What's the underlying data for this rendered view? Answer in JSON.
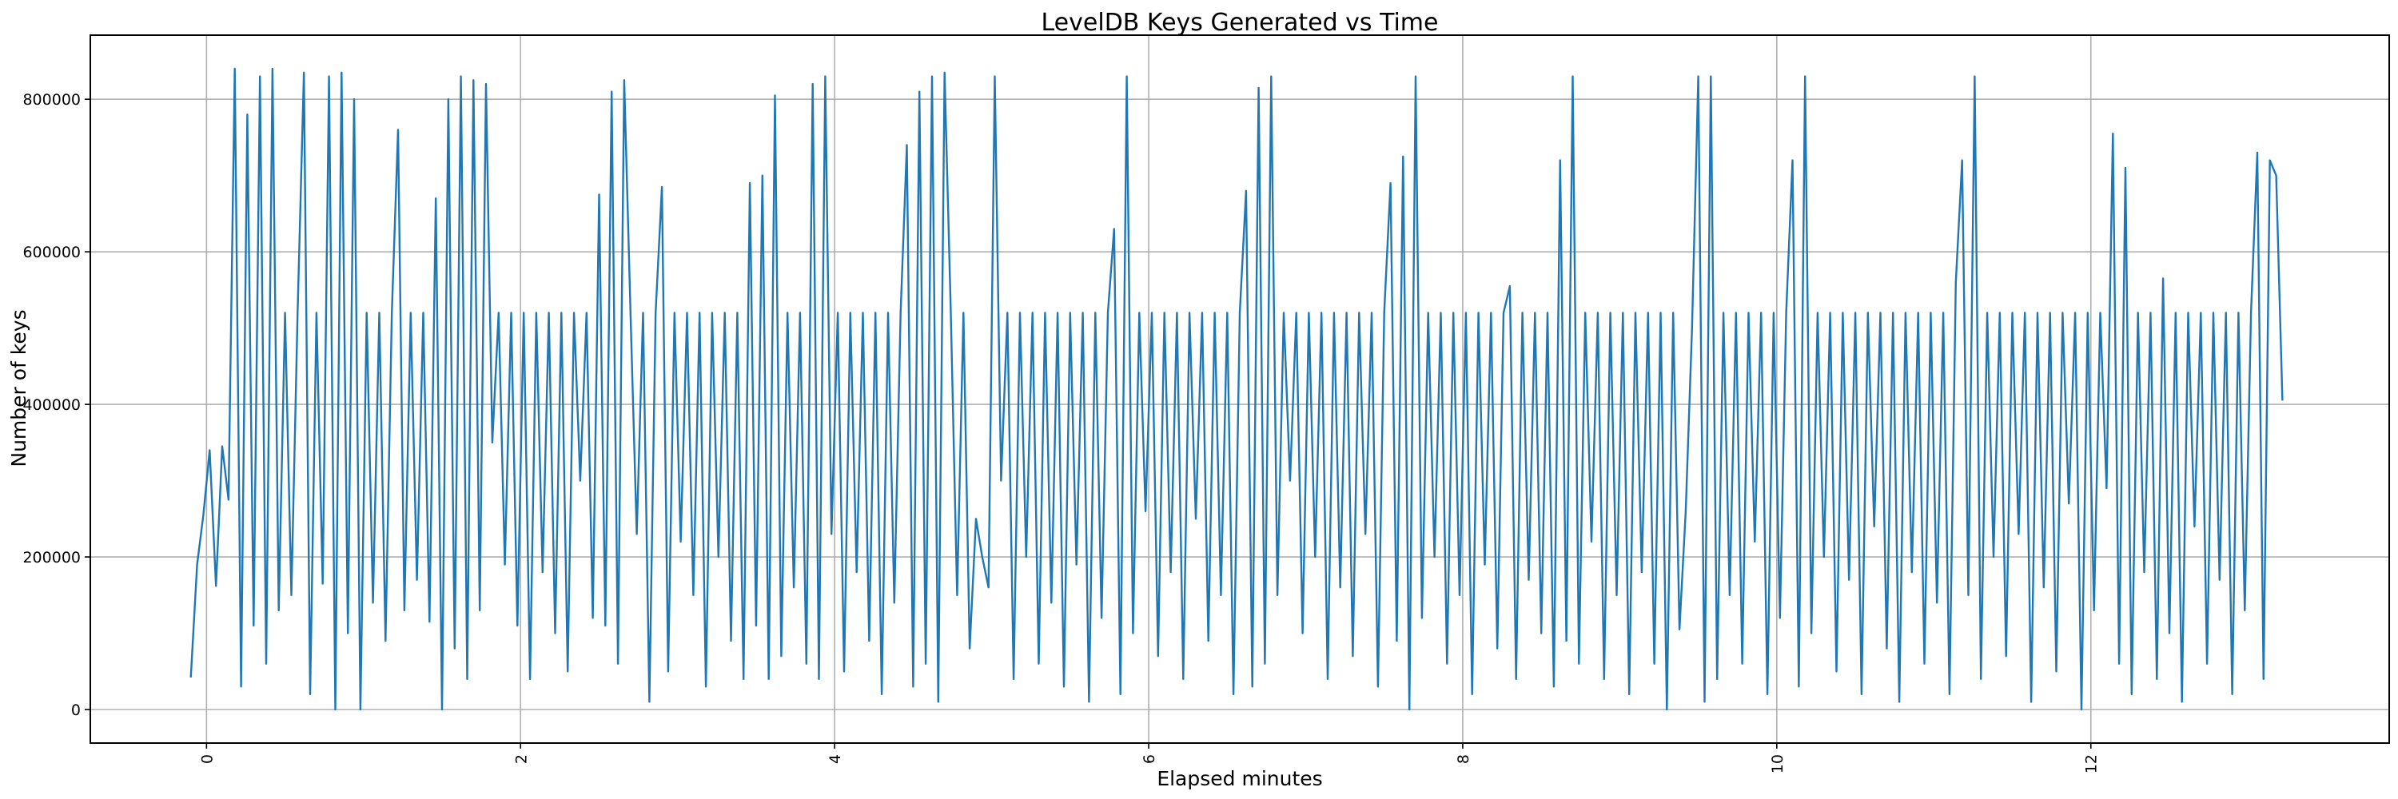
{
  "chart_data": {
    "type": "line",
    "title": "LevelDB Keys Generated vs Time",
    "xlabel": "Elapsed minutes",
    "ylabel": "Number of keys",
    "xlim": [
      -0.74,
      13.9
    ],
    "ylim": [
      -44000,
      884000
    ],
    "xticks": [
      0,
      2,
      4,
      6,
      8,
      10,
      12
    ],
    "yticks": [
      0,
      200000,
      400000,
      600000,
      800000
    ],
    "grid": true,
    "x_step": 0.04,
    "series": [
      {
        "name": "keys",
        "color": "#1f77b4",
        "segments": [
          {
            "x_start": -0.1,
            "values": [
              42000,
              190000,
              255000
            ]
          },
          {
            "x_start": 0.02,
            "values": [
              340000,
              162000,
              345000,
              275000
            ]
          },
          {
            "x_start": 0.18,
            "values": [
              840000,
              30000,
              780000,
              110000,
              830000,
              60000,
              840000,
              130000,
              520000,
              150000,
              520000,
              835000,
              20000,
              520000,
              165000,
              830000,
              0,
              835000,
              100000,
              800000,
              0
            ]
          },
          {
            "x_start": 1.02,
            "values": [
              520000,
              140000,
              520000,
              90000,
              520000,
              760000,
              130000,
              520000,
              170000,
              520000,
              115000,
              670000,
              0,
              800000,
              80000,
              830000,
              40000,
              825000,
              130000,
              820000,
              350000,
              520000,
              190000,
              520000,
              110000
            ]
          },
          {
            "x_start": 2.02,
            "values": [
              520000,
              40000,
              520000,
              180000,
              520000,
              100000,
              520000,
              50000,
              520000,
              300000,
              520000,
              120000,
              675000,
              110000,
              810000,
              60000,
              825000,
              520000,
              230000,
              520000,
              10000,
              520000,
              685000,
              50000,
              520000
            ]
          },
          {
            "x_start": 3.02,
            "values": [
              220000,
              520000,
              150000,
              520000,
              30000,
              520000,
              200000,
              520000,
              90000,
              520000,
              40000,
              690000,
              110000,
              700000,
              40000,
              805000,
              70000,
              520000,
              160000,
              520000,
              60000,
              820000,
              40000,
              830000,
              230000
            ]
          },
          {
            "x_start": 4.02,
            "values": [
              520000,
              50000,
              520000,
              180000,
              520000,
              90000,
              520000,
              20000,
              520000,
              140000,
              520000,
              740000,
              30000,
              810000,
              60000,
              830000,
              10000,
              835000,
              520000,
              150000,
              520000,
              80000,
              250000,
              200000,
              160000
            ]
          },
          {
            "x_start": 5.02,
            "values": [
              830000,
              300000,
              520000,
              40000,
              520000,
              200000,
              520000,
              60000,
              520000,
              140000,
              520000,
              30000,
              520000,
              190000,
              520000,
              10000,
              520000,
              120000,
              520000,
              630000,
              20000,
              830000,
              100000,
              520000,
              260000
            ]
          },
          {
            "x_start": 6.02,
            "values": [
              520000,
              70000,
              520000,
              180000,
              520000,
              40000,
              520000,
              250000,
              520000,
              90000,
              520000,
              150000,
              520000,
              20000,
              520000,
              680000,
              30000,
              815000,
              60000,
              830000,
              150000,
              520000,
              300000,
              520000,
              100000
            ]
          },
          {
            "x_start": 7.02,
            "values": [
              520000,
              200000,
              520000,
              40000,
              520000,
              160000,
              520000,
              70000,
              520000,
              230000,
              520000,
              30000,
              520000,
              690000,
              90000,
              725000,
              0,
              830000,
              120000,
              520000,
              200000,
              520000,
              60000,
              520000,
              150000
            ]
          },
          {
            "x_start": 8.02,
            "values": [
              520000,
              20000,
              520000,
              190000,
              520000,
              80000,
              520000,
              555000,
              40000,
              520000,
              170000,
              520000,
              100000,
              520000,
              30000,
              720000,
              90000,
              830000,
              60000,
              520000,
              220000,
              520000,
              40000,
              520000,
              150000
            ]
          },
          {
            "x_start": 9.02,
            "values": [
              520000,
              20000,
              520000,
              180000,
              520000,
              60000,
              520000,
              0,
              520000,
              105000,
              260000,
              500000,
              830000,
              10000,
              830000,
              40000,
              520000,
              150000,
              520000,
              60000,
              520000,
              220000,
              520000,
              20000,
              520000
            ]
          },
          {
            "x_start": 10.02,
            "values": [
              120000,
              520000,
              720000,
              30000,
              830000,
              100000,
              520000,
              200000,
              520000,
              50000,
              520000,
              170000,
              520000,
              20000,
              520000,
              240000,
              520000,
              80000,
              520000,
              10000,
              520000,
              180000,
              520000,
              60000,
              520000
            ]
          },
          {
            "x_start": 11.02,
            "values": [
              140000,
              520000,
              20000,
              560000,
              720000,
              150000,
              830000,
              40000,
              520000,
              200000,
              520000,
              70000,
              520000,
              230000,
              520000,
              10000,
              520000,
              160000,
              520000,
              50000,
              520000,
              270000,
              520000,
              0,
              520000
            ]
          },
          {
            "x_start": 12.02,
            "values": [
              130000,
              520000,
              290000,
              755000,
              60000,
              710000,
              20000,
              520000,
              180000,
              520000,
              40000,
              565000,
              100000,
              520000,
              10000,
              520000,
              240000,
              520000,
              60000,
              520000,
              170000,
              520000,
              20000,
              520000,
              130000
            ]
          },
          {
            "x_start": 13.02,
            "values": [
              520000,
              730000,
              40000,
              720000,
              700000,
              405000
            ]
          }
        ]
      }
    ]
  }
}
